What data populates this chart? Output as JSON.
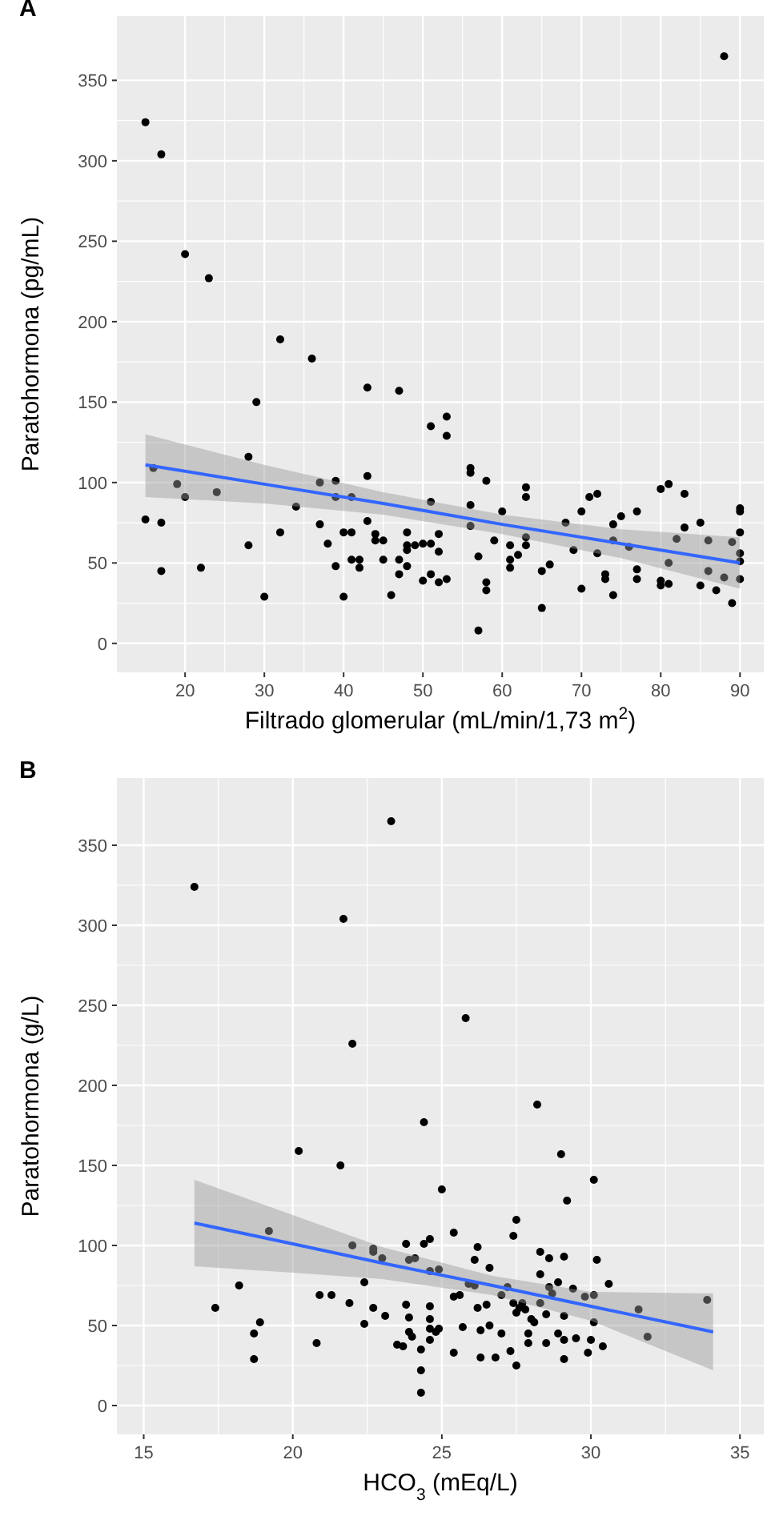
{
  "chart_data": [
    {
      "type": "scatter",
      "title": "A",
      "xlabel": "Filtrado glomerular (mL/min/1,73 m$^{2}$)",
      "ylabel": "Paratohormona (pg/mL)",
      "xlim": [
        11.4,
        93
      ],
      "ylim": [
        -18,
        390
      ],
      "xticks": [
        20,
        30,
        40,
        50,
        60,
        70,
        80,
        90
      ],
      "yticks": [
        0,
        50,
        100,
        150,
        200,
        250,
        300,
        350
      ],
      "grid": true,
      "marker": "circle",
      "series": [
        {
          "color": "#000000",
          "x": [
            15,
            16,
            17,
            17,
            19,
            20,
            22,
            24,
            28,
            28,
            29,
            30,
            32,
            34,
            37,
            37,
            38,
            39,
            39,
            39,
            40,
            40,
            41,
            41,
            41,
            42,
            42,
            43,
            43,
            43,
            44,
            44,
            45,
            45,
            46,
            47,
            47,
            47,
            48,
            48,
            48,
            48,
            49,
            50,
            50,
            51,
            51,
            51,
            51,
            52,
            52,
            52,
            53,
            53,
            53,
            56,
            56,
            56,
            56,
            57,
            57,
            58,
            58,
            58,
            59,
            60,
            61,
            61,
            61,
            62,
            63,
            63,
            63,
            63,
            65,
            65,
            66,
            68,
            69,
            70,
            70,
            71,
            72,
            72,
            73,
            73,
            74,
            74,
            74,
            75,
            76,
            77,
            77,
            77,
            80,
            80,
            80,
            81,
            81,
            81,
            82,
            83,
            83,
            85,
            85,
            86,
            86,
            87,
            88,
            89,
            89,
            90,
            90,
            90,
            90,
            90,
            90,
            15,
            17,
            20,
            23,
            32,
            36,
            88
          ],
          "values": [
            77,
            109,
            75,
            45,
            99,
            91,
            47,
            94,
            116,
            61,
            150,
            29,
            69,
            85,
            100,
            74,
            62,
            101,
            91,
            48,
            29,
            69,
            69,
            91,
            52,
            52,
            47,
            159,
            104,
            76,
            68,
            64,
            64,
            52,
            30,
            52,
            43,
            157,
            69,
            48,
            58,
            61,
            61,
            39,
            62,
            62,
            43,
            135,
            88,
            57,
            68,
            38,
            40,
            141,
            129,
            109,
            106,
            86,
            73,
            54,
            8,
            101,
            38,
            33,
            64,
            82,
            61,
            52,
            47,
            55,
            97,
            91,
            66,
            61,
            45,
            22,
            49,
            75,
            58,
            82,
            34,
            91,
            93,
            56,
            43,
            40,
            74,
            30,
            64,
            79,
            60,
            82,
            46,
            40,
            96,
            39,
            36,
            99,
            50,
            37,
            65,
            93,
            72,
            75,
            36,
            64,
            45,
            33,
            41,
            63,
            25,
            84,
            82,
            69,
            56,
            51,
            40,
            324,
            304,
            242,
            227,
            189,
            177,
            365
          ]
        },
        {
          "type": "line",
          "marker": "none",
          "color": "#3366ff",
          "x": [
            15,
            30,
            45,
            60,
            75,
            90
          ],
          "values": [
            111,
            99,
            87,
            74,
            62,
            50
          ],
          "lower": [
            91,
            87,
            80,
            68,
            53,
            34
          ],
          "upper": [
            130,
            111,
            94,
            80,
            71,
            66
          ]
        }
      ]
    },
    {
      "type": "scatter",
      "title": "B",
      "xlabel": "HCO$_{3}$ (mEq/L)",
      "ylabel": "Paratohormona (g/L)",
      "xlim": [
        14.1,
        35.8
      ],
      "ylim": [
        -18,
        392
      ],
      "xticks": [
        15,
        20,
        25,
        30,
        35
      ],
      "yticks": [
        0,
        50,
        100,
        150,
        200,
        250,
        300,
        350
      ],
      "grid": true,
      "marker": "circle",
      "series": [
        {
          "color": "#000000",
          "x": [
            17.4,
            18.2,
            18.7,
            18.7,
            18.9,
            19.2,
            20.2,
            20.8,
            20.9,
            21.3,
            21.6,
            21.9,
            22.0,
            22.4,
            22.4,
            22.7,
            22.7,
            22.7,
            23.0,
            23.1,
            23.5,
            23.7,
            23.8,
            23.8,
            23.9,
            23.9,
            23.9,
            24.0,
            24.1,
            24.3,
            24.3,
            24.3,
            24.4,
            24.4,
            24.6,
            24.6,
            24.6,
            24.6,
            24.6,
            24.6,
            24.8,
            24.9,
            24.9,
            25.0,
            25.4,
            25.4,
            25.4,
            25.6,
            25.7,
            25.9,
            26.1,
            26.1,
            26.2,
            26.2,
            26.3,
            26.3,
            26.5,
            26.6,
            26.6,
            26.8,
            27.0,
            27.0,
            27.2,
            27.3,
            27.4,
            27.5,
            27.4,
            27.5,
            27.5,
            27.6,
            27.7,
            27.8,
            27.9,
            27.9,
            28.0,
            28.1,
            28.2,
            28.3,
            28.3,
            28.3,
            28.5,
            28.5,
            28.6,
            28.6,
            28.7,
            28.9,
            28.9,
            29.1,
            29.0,
            29.1,
            29.1,
            29.1,
            29.2,
            29.4,
            29.5,
            29.8,
            29.9,
            30.0,
            30.1,
            30.1,
            30.1,
            30.2,
            30.4,
            30.6,
            31.6,
            31.9,
            33.9,
            16.7,
            21.7,
            23.3,
            22.0,
            25.8
          ],
          "values": [
            61,
            75,
            45,
            29,
            52,
            109,
            159,
            39,
            69,
            69,
            150,
            64,
            100,
            77,
            51,
            98,
            96,
            61,
            92,
            56,
            38,
            37,
            101,
            63,
            91,
            55,
            46,
            43,
            92,
            35,
            22,
            8,
            177,
            101,
            54,
            48,
            84,
            104,
            62,
            41,
            46,
            48,
            85,
            135,
            108,
            68,
            33,
            69,
            49,
            76,
            75,
            91,
            99,
            61,
            47,
            30,
            63,
            86,
            50,
            30,
            69,
            45,
            74,
            34,
            106,
            116,
            64,
            25,
            58,
            61,
            64,
            60,
            45,
            39,
            54,
            52,
            188,
            96,
            82,
            64,
            57,
            39,
            74,
            92,
            70,
            77,
            45,
            93,
            157,
            56,
            41,
            29,
            128,
            73,
            42,
            68,
            33,
            41,
            52,
            69,
            141,
            91,
            37,
            76,
            60,
            43,
            66,
            324,
            304,
            365,
            226,
            242
          ]
        },
        {
          "type": "line",
          "marker": "none",
          "color": "#3366ff",
          "x": [
            16.7,
            20,
            23,
            26.7,
            30,
            34.1
          ],
          "values": [
            114,
            101,
            89,
            75,
            62,
            46
          ],
          "lower": [
            87,
            83,
            79,
            69,
            53,
            22
          ],
          "upper": [
            141,
            119,
            99,
            81,
            71,
            70
          ]
        }
      ]
    }
  ]
}
